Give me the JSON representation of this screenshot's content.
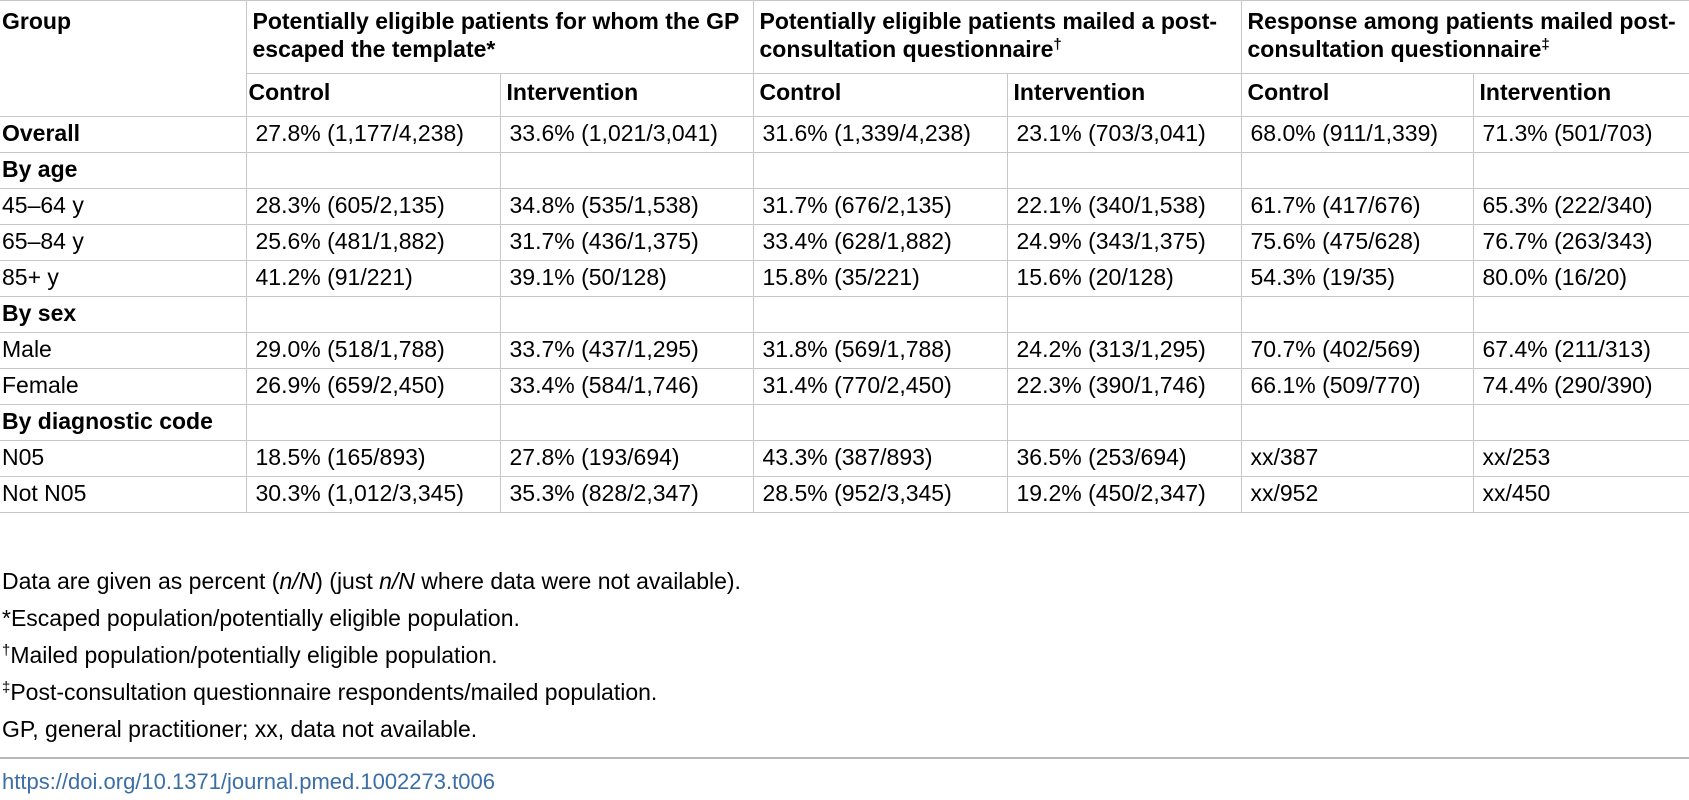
{
  "table": {
    "header_group_label": "Group",
    "header_groups": [
      {
        "title": "Potentially eligible patients for whom the GP escaped the template",
        "mark": "*"
      },
      {
        "title": "Potentially eligible patients mailed a post-consultation questionnaire",
        "mark": "†"
      },
      {
        "title": "Response among patients mailed post-consultation questionnaire",
        "mark": "‡"
      }
    ],
    "sub_headers": [
      "Control",
      "Intervention",
      "Control",
      "Intervention",
      "Control",
      "Intervention"
    ],
    "rows": [
      {
        "label": "Overall",
        "bold": true,
        "cells": [
          "27.8% (1,177/4,238)",
          "33.6% (1,021/3,041)",
          "31.6% (1,339/4,238)",
          "23.1% (703/3,041)",
          "68.0% (911/1,339)",
          "71.3% (501/703)"
        ]
      },
      {
        "label": "By age",
        "bold": true,
        "cells": [
          "",
          "",
          "",
          "",
          "",
          ""
        ]
      },
      {
        "label": "45–64 y",
        "bold": false,
        "cells": [
          "28.3% (605/2,135)",
          "34.8% (535/1,538)",
          "31.7% (676/2,135)",
          "22.1% (340/1,538)",
          "61.7% (417/676)",
          "65.3% (222/340)"
        ]
      },
      {
        "label": "65–84 y",
        "bold": false,
        "cells": [
          "25.6% (481/1,882)",
          "31.7% (436/1,375)",
          "33.4% (628/1,882)",
          "24.9% (343/1,375)",
          "75.6% (475/628)",
          "76.7% (263/343)"
        ]
      },
      {
        "label": "85+ y",
        "bold": false,
        "cells": [
          "41.2% (91/221)",
          "39.1% (50/128)",
          "15.8% (35/221)",
          "15.6% (20/128)",
          "54.3% (19/35)",
          "80.0% (16/20)"
        ]
      },
      {
        "label": "By sex",
        "bold": true,
        "cells": [
          "",
          "",
          "",
          "",
          "",
          ""
        ]
      },
      {
        "label": "Male",
        "bold": false,
        "cells": [
          "29.0% (518/1,788)",
          "33.7% (437/1,295)",
          "31.8% (569/1,788)",
          "24.2% (313/1,295)",
          "70.7% (402/569)",
          "67.4% (211/313)"
        ]
      },
      {
        "label": "Female",
        "bold": false,
        "cells": [
          "26.9% (659/2,450)",
          "33.4% (584/1,746)",
          "31.4% (770/2,450)",
          "22.3% (390/1,746)",
          "66.1% (509/770)",
          "74.4% (290/390)"
        ]
      },
      {
        "label": "By diagnostic code",
        "bold": true,
        "cells": [
          "",
          "",
          "",
          "",
          "",
          ""
        ]
      },
      {
        "label": "N05",
        "bold": false,
        "cells": [
          "18.5% (165/893)",
          "27.8% (193/694)",
          "43.3% (387/893)",
          "36.5% (253/694)",
          "xx/387",
          "xx/253"
        ]
      },
      {
        "label": "Not N05",
        "bold": false,
        "cells": [
          "30.3% (1,012/3,345)",
          "35.3% (828/2,347)",
          "28.5% (952/3,345)",
          "19.2% (450/2,347)",
          "xx/952",
          "xx/450"
        ]
      }
    ]
  },
  "notes": {
    "data_note": {
      "part1": "Data are given as percent (",
      "nN": "n/N",
      "part2": ") (just ",
      "part3": " where data were not available)."
    },
    "footnotes": [
      {
        "mark": "*",
        "text": "Escaped population/potentially eligible population."
      },
      {
        "mark": "†",
        "text": "Mailed population/potentially eligible population."
      },
      {
        "mark": "‡",
        "text": "Post-consultation questionnaire respondents/mailed population."
      }
    ],
    "abbreviations": "GP, general practitioner; xx, data not available."
  },
  "doi": "https://doi.org/10.1371/journal.pmed.1002273.t006",
  "colors": {
    "link": "#3a6ea5",
    "grid": "#c7c7c7"
  }
}
